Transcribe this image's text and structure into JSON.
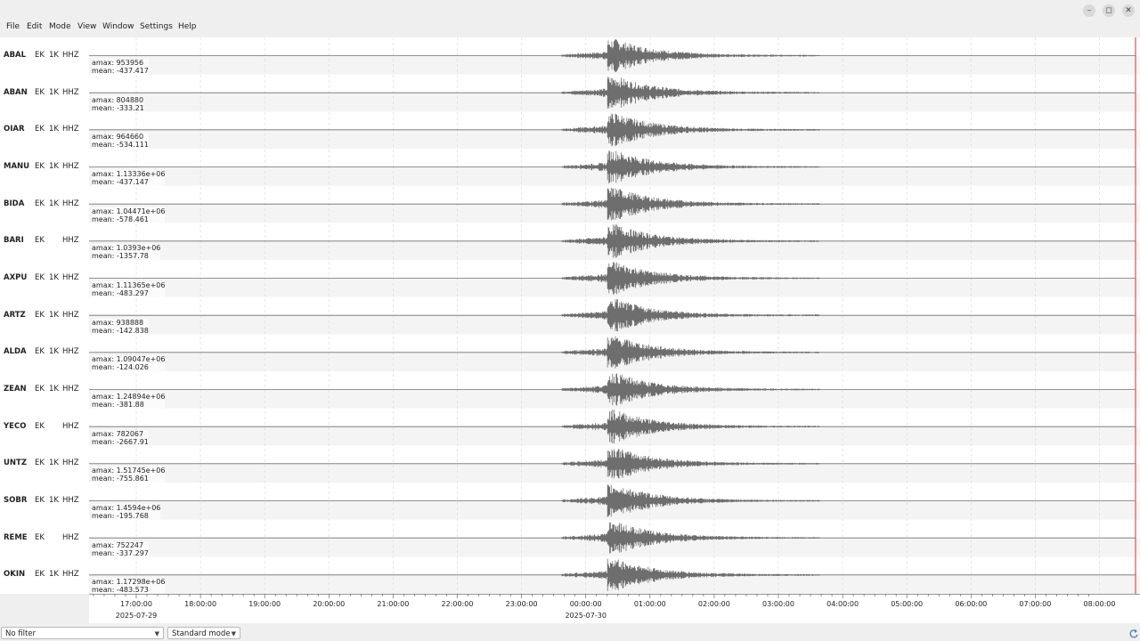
{
  "window": {
    "controls": {
      "minimize": "–",
      "maximize": "◻",
      "close": "✕"
    }
  },
  "menu": [
    "File",
    "Edit",
    "Mode",
    "View",
    "Window",
    "Settings",
    "Help"
  ],
  "traces": [
    {
      "station": "ABAL",
      "network": "EK",
      "location": "1K",
      "channel": "HHZ",
      "amax": "amax: 953956",
      "mean": "mean: -437.417"
    },
    {
      "station": "ABAN",
      "network": "EK",
      "location": "1K",
      "channel": "HHZ",
      "amax": "amax: 804880",
      "mean": "mean: -333.21"
    },
    {
      "station": "OIAR",
      "network": "EK",
      "location": "1K",
      "channel": "HHZ",
      "amax": "amax: 964660",
      "mean": "mean: -534.111"
    },
    {
      "station": "MANU",
      "network": "EK",
      "location": "1K",
      "channel": "HHZ",
      "amax": "amax: 1.13336e+06",
      "mean": "mean: -437.147"
    },
    {
      "station": "BIDA",
      "network": "EK",
      "location": "1K",
      "channel": "HHZ",
      "amax": "amax: 1.04471e+06",
      "mean": "mean: -578.461"
    },
    {
      "station": "BARI",
      "network": "EK",
      "location": "",
      "channel": "HHZ",
      "amax": "amax: 1.0393e+06",
      "mean": "mean: -1357.78"
    },
    {
      "station": "AXPU",
      "network": "EK",
      "location": "1K",
      "channel": "HHZ",
      "amax": "amax: 1.11365e+06",
      "mean": "mean: -483.297"
    },
    {
      "station": "ARTZ",
      "network": "EK",
      "location": "1K",
      "channel": "HHZ",
      "amax": "amax: 938888",
      "mean": "mean: -142.838"
    },
    {
      "station": "ALDA",
      "network": "EK",
      "location": "1K",
      "channel": "HHZ",
      "amax": "amax: 1.09047e+06",
      "mean": "mean: -124.026"
    },
    {
      "station": "ZEAN",
      "network": "EK",
      "location": "1K",
      "channel": "HHZ",
      "amax": "amax: 1.24894e+06",
      "mean": "mean: -381.88"
    },
    {
      "station": "YECO",
      "network": "EK",
      "location": "",
      "channel": "HHZ",
      "amax": "amax: 782067",
      "mean": "mean: -2667.91"
    },
    {
      "station": "UNTZ",
      "network": "EK",
      "location": "1K",
      "channel": "HHZ",
      "amax": "amax: 1.51745e+06",
      "mean": "mean: -755.861"
    },
    {
      "station": "SOBR",
      "network": "EK",
      "location": "1K",
      "channel": "HHZ",
      "amax": "amax: 1.4594e+06",
      "mean": "mean: -195.768"
    },
    {
      "station": "REME",
      "network": "EK",
      "location": "",
      "channel": "HHZ",
      "amax": "amax: 752247",
      "mean": "mean: -337.297"
    },
    {
      "station": "OKIN",
      "network": "EK",
      "location": "1K",
      "channel": "HHZ",
      "amax": "amax: 1.17298e+06",
      "mean": "mean: -483.573"
    }
  ],
  "time_axis": {
    "ticks": [
      "17:00:00",
      "18:00:00",
      "19:00:00",
      "20:00:00",
      "21:00:00",
      "22:00:00",
      "23:00:00",
      "00:00:00",
      "01:00:00",
      "02:00:00",
      "03:00:00",
      "04:00:00",
      "05:00:00",
      "06:00:00",
      "07:00:00",
      "08:00:00"
    ],
    "dates": [
      "2025-07-29",
      "2025-07-30"
    ],
    "first_tick_hour": 17,
    "visible_hours": [
      16.32,
      8.5
    ],
    "event_onset_hour": 23.63,
    "event_peak_hour": 0.45
  },
  "status": {
    "filter": "No filter",
    "mode": "Standard mode"
  },
  "colors": {
    "trace": "#6e6e6e",
    "row_alt": "#f4f4f4",
    "grid": "#dcdcdc",
    "end_marker": "#e05050"
  },
  "icons": {
    "status_corner": "refresh-icon"
  }
}
